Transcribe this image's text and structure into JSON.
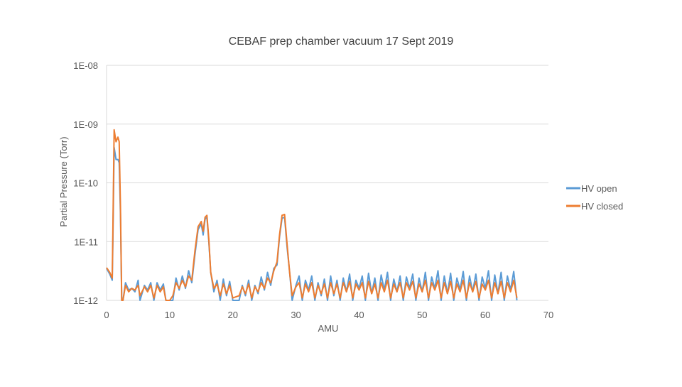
{
  "chart_data": {
    "type": "line",
    "title": "CEBAF prep chamber vacuum 17 Sept 2019",
    "xlabel": "AMU",
    "ylabel": "Partial Pressure (Torr)",
    "yscale": "log",
    "xlim": [
      0,
      70
    ],
    "ylim": [
      1e-12,
      1e-08
    ],
    "xticks": [
      0,
      10,
      20,
      30,
      40,
      50,
      60,
      70
    ],
    "xtick_labels": [
      "0",
      "10",
      "20",
      "30",
      "40",
      "50",
      "60",
      "70"
    ],
    "yticks": [
      1e-12,
      1e-11,
      1e-10,
      1e-09,
      1e-08
    ],
    "ytick_labels": [
      "1E-12",
      "1E-11",
      "1E-10",
      "1E-09",
      "1E-08"
    ],
    "grid": "horizontal",
    "legend_position": "right",
    "series": [
      {
        "name": "HV open",
        "color": "#5b9bd5",
        "points": [
          [
            0.0,
            3.5e-12
          ],
          [
            0.5,
            2.8e-12
          ],
          [
            0.9,
            2.2e-12
          ],
          [
            1.0,
            1e-11
          ],
          [
            1.2,
            4e-10
          ],
          [
            1.5,
            2.5e-10
          ],
          [
            1.8,
            2.5e-10
          ],
          [
            2.0,
            2.2e-10
          ],
          [
            2.2,
            3e-11
          ],
          [
            2.4,
            1e-12
          ],
          [
            2.6,
            1e-12
          ],
          [
            3.0,
            2e-12
          ],
          [
            3.5,
            1.5e-12
          ],
          [
            4.0,
            1.6e-12
          ],
          [
            4.5,
            1.4e-12
          ],
          [
            5.0,
            2.2e-12
          ],
          [
            5.3,
            1e-12
          ],
          [
            6.0,
            1.8e-12
          ],
          [
            6.5,
            1.5e-12
          ],
          [
            7.0,
            2e-12
          ],
          [
            7.5,
            1e-12
          ],
          [
            8.0,
            2e-12
          ],
          [
            8.5,
            1.5e-12
          ],
          [
            9.0,
            1.9e-12
          ],
          [
            9.4,
            1e-12
          ],
          [
            10.0,
            1e-12
          ],
          [
            10.5,
            1e-12
          ],
          [
            11.0,
            2.4e-12
          ],
          [
            11.5,
            1.5e-12
          ],
          [
            12.0,
            2.6e-12
          ],
          [
            12.5,
            1.6e-12
          ],
          [
            13.0,
            3.2e-12
          ],
          [
            13.5,
            2e-12
          ],
          [
            14.0,
            6e-12
          ],
          [
            14.5,
            1.6e-11
          ],
          [
            15.0,
            2e-11
          ],
          [
            15.3,
            1.3e-11
          ],
          [
            15.6,
            2.4e-11
          ],
          [
            15.9,
            2.6e-11
          ],
          [
            16.2,
            1e-11
          ],
          [
            16.5,
            3e-12
          ],
          [
            17.0,
            1.4e-12
          ],
          [
            17.5,
            2.2e-12
          ],
          [
            18.0,
            1e-12
          ],
          [
            18.5,
            2.3e-12
          ],
          [
            19.0,
            1.2e-12
          ],
          [
            19.5,
            2.1e-12
          ],
          [
            20.0,
            1e-12
          ],
          [
            21.0,
            1e-12
          ],
          [
            21.5,
            1.8e-12
          ],
          [
            22.0,
            1.2e-12
          ],
          [
            22.5,
            2.2e-12
          ],
          [
            23.0,
            1e-12
          ],
          [
            23.5,
            1.8e-12
          ],
          [
            24.0,
            1.3e-12
          ],
          [
            24.5,
            2.5e-12
          ],
          [
            25.0,
            1.5e-12
          ],
          [
            25.5,
            3e-12
          ],
          [
            26.0,
            1.8e-12
          ],
          [
            26.5,
            3.5e-12
          ],
          [
            27.0,
            4e-12
          ],
          [
            27.4,
            1.2e-11
          ],
          [
            27.8,
            2.5e-11
          ],
          [
            28.2,
            2.6e-11
          ],
          [
            28.6,
            8e-12
          ],
          [
            29.0,
            3e-12
          ],
          [
            29.4,
            1e-12
          ],
          [
            30.0,
            1.8e-12
          ],
          [
            30.5,
            2.6e-12
          ],
          [
            31.0,
            1e-12
          ],
          [
            31.5,
            2.2e-12
          ],
          [
            32.0,
            1.5e-12
          ],
          [
            32.5,
            2.6e-12
          ],
          [
            33.0,
            1e-12
          ],
          [
            33.5,
            2e-12
          ],
          [
            34.0,
            1.2e-12
          ],
          [
            34.5,
            2.3e-12
          ],
          [
            35.0,
            1e-12
          ],
          [
            35.5,
            2.6e-12
          ],
          [
            36.0,
            1.2e-12
          ],
          [
            36.5,
            2.2e-12
          ],
          [
            37.0,
            1e-12
          ],
          [
            37.5,
            2.4e-12
          ],
          [
            38.0,
            1.4e-12
          ],
          [
            38.5,
            2.8e-12
          ],
          [
            39.0,
            1e-12
          ],
          [
            39.5,
            2.2e-12
          ],
          [
            40.0,
            1.6e-12
          ],
          [
            40.5,
            2.6e-12
          ],
          [
            41.0,
            1e-12
          ],
          [
            41.5,
            2.9e-12
          ],
          [
            42.0,
            1.3e-12
          ],
          [
            42.5,
            2.4e-12
          ],
          [
            43.0,
            1e-12
          ],
          [
            43.5,
            2.7e-12
          ],
          [
            44.0,
            1.5e-12
          ],
          [
            44.5,
            3e-12
          ],
          [
            45.0,
            1e-12
          ],
          [
            45.5,
            2.3e-12
          ],
          [
            46.0,
            1.4e-12
          ],
          [
            46.5,
            2.6e-12
          ],
          [
            47.0,
            1e-12
          ],
          [
            47.5,
            2.5e-12
          ],
          [
            48.0,
            1.6e-12
          ],
          [
            48.5,
            2.8e-12
          ],
          [
            49.0,
            1e-12
          ],
          [
            49.5,
            2.4e-12
          ],
          [
            50.0,
            1.4e-12
          ],
          [
            50.5,
            3e-12
          ],
          [
            51.0,
            1e-12
          ],
          [
            51.5,
            2.5e-12
          ],
          [
            52.0,
            1.6e-12
          ],
          [
            52.5,
            3.2e-12
          ],
          [
            53.0,
            1e-12
          ],
          [
            53.5,
            2.6e-12
          ],
          [
            54.0,
            1.3e-12
          ],
          [
            54.5,
            2.9e-12
          ],
          [
            55.0,
            1e-12
          ],
          [
            55.5,
            2.4e-12
          ],
          [
            56.0,
            1.5e-12
          ],
          [
            56.5,
            3.1e-12
          ],
          [
            57.0,
            1e-12
          ],
          [
            57.5,
            2.6e-12
          ],
          [
            58.0,
            1.4e-12
          ],
          [
            58.5,
            2.8e-12
          ],
          [
            59.0,
            1e-12
          ],
          [
            59.5,
            2.5e-12
          ],
          [
            60.0,
            1.6e-12
          ],
          [
            60.5,
            3.2e-12
          ],
          [
            61.0,
            1e-12
          ],
          [
            61.5,
            2.7e-12
          ],
          [
            62.0,
            1.3e-12
          ],
          [
            62.5,
            3e-12
          ],
          [
            63.0,
            1e-12
          ],
          [
            63.5,
            2.6e-12
          ],
          [
            64.0,
            1.5e-12
          ],
          [
            64.5,
            3.1e-12
          ],
          [
            65.0,
            1e-12
          ]
        ]
      },
      {
        "name": "HV closed",
        "color": "#ed7d31",
        "points": [
          [
            0.0,
            3.6e-12
          ],
          [
            0.5,
            3e-12
          ],
          [
            0.9,
            2.4e-12
          ],
          [
            1.0,
            1.5e-11
          ],
          [
            1.2,
            8e-10
          ],
          [
            1.5,
            5e-10
          ],
          [
            1.8,
            6e-10
          ],
          [
            2.0,
            5e-10
          ],
          [
            2.2,
            4e-11
          ],
          [
            2.4,
            1e-12
          ],
          [
            2.6,
            1e-12
          ],
          [
            3.0,
            1.8e-12
          ],
          [
            3.5,
            1.4e-12
          ],
          [
            4.0,
            1.6e-12
          ],
          [
            4.5,
            1.5e-12
          ],
          [
            5.0,
            1.8e-12
          ],
          [
            5.3,
            1.2e-12
          ],
          [
            6.0,
            1.7e-12
          ],
          [
            6.5,
            1.4e-12
          ],
          [
            7.0,
            1.8e-12
          ],
          [
            7.5,
            1.1e-12
          ],
          [
            8.0,
            1.8e-12
          ],
          [
            8.5,
            1.4e-12
          ],
          [
            9.0,
            1.7e-12
          ],
          [
            9.4,
            1e-12
          ],
          [
            10.0,
            1e-12
          ],
          [
            10.5,
            1.2e-12
          ],
          [
            11.0,
            2e-12
          ],
          [
            11.5,
            1.6e-12
          ],
          [
            12.0,
            2.2e-12
          ],
          [
            12.5,
            1.7e-12
          ],
          [
            13.0,
            2.6e-12
          ],
          [
            13.5,
            2.2e-12
          ],
          [
            14.0,
            7e-12
          ],
          [
            14.5,
            1.8e-11
          ],
          [
            15.0,
            2.2e-11
          ],
          [
            15.3,
            1.5e-11
          ],
          [
            15.6,
            2.6e-11
          ],
          [
            15.9,
            2.8e-11
          ],
          [
            16.2,
            1.1e-11
          ],
          [
            16.5,
            3e-12
          ],
          [
            17.0,
            1.6e-12
          ],
          [
            17.5,
            1.9e-12
          ],
          [
            18.0,
            1.2e-12
          ],
          [
            18.5,
            1.9e-12
          ],
          [
            19.0,
            1.3e-12
          ],
          [
            19.5,
            1.8e-12
          ],
          [
            20.0,
            1.1e-12
          ],
          [
            21.0,
            1.2e-12
          ],
          [
            21.5,
            1.7e-12
          ],
          [
            22.0,
            1.3e-12
          ],
          [
            22.5,
            1.9e-12
          ],
          [
            23.0,
            1.1e-12
          ],
          [
            23.5,
            1.7e-12
          ],
          [
            24.0,
            1.4e-12
          ],
          [
            24.5,
            2e-12
          ],
          [
            25.0,
            1.6e-12
          ],
          [
            25.5,
            2.4e-12
          ],
          [
            26.0,
            2e-12
          ],
          [
            26.5,
            3.2e-12
          ],
          [
            27.0,
            4.5e-12
          ],
          [
            27.4,
            1.3e-11
          ],
          [
            27.8,
            2.8e-11
          ],
          [
            28.2,
            2.9e-11
          ],
          [
            28.6,
            9e-12
          ],
          [
            29.0,
            3e-12
          ],
          [
            29.4,
            1.2e-12
          ],
          [
            30.0,
            1.7e-12
          ],
          [
            30.5,
            2e-12
          ],
          [
            31.0,
            1.1e-12
          ],
          [
            31.5,
            1.9e-12
          ],
          [
            32.0,
            1.4e-12
          ],
          [
            32.5,
            2e-12
          ],
          [
            33.0,
            1.1e-12
          ],
          [
            33.5,
            1.8e-12
          ],
          [
            34.0,
            1.3e-12
          ],
          [
            34.5,
            1.9e-12
          ],
          [
            35.0,
            1.1e-12
          ],
          [
            35.5,
            2e-12
          ],
          [
            36.0,
            1.3e-12
          ],
          [
            36.5,
            1.9e-12
          ],
          [
            37.0,
            1.1e-12
          ],
          [
            37.5,
            2e-12
          ],
          [
            38.0,
            1.4e-12
          ],
          [
            38.5,
            2.1e-12
          ],
          [
            39.0,
            1.1e-12
          ],
          [
            39.5,
            1.9e-12
          ],
          [
            40.0,
            1.5e-12
          ],
          [
            40.5,
            2e-12
          ],
          [
            41.0,
            1.1e-12
          ],
          [
            41.5,
            2.1e-12
          ],
          [
            42.0,
            1.3e-12
          ],
          [
            42.5,
            1.9e-12
          ],
          [
            43.0,
            1.1e-12
          ],
          [
            43.5,
            2e-12
          ],
          [
            44.0,
            1.4e-12
          ],
          [
            44.5,
            2.2e-12
          ],
          [
            45.0,
            1.1e-12
          ],
          [
            45.5,
            1.9e-12
          ],
          [
            46.0,
            1.4e-12
          ],
          [
            46.5,
            2e-12
          ],
          [
            47.0,
            1.1e-12
          ],
          [
            47.5,
            2e-12
          ],
          [
            48.0,
            1.5e-12
          ],
          [
            48.5,
            2.1e-12
          ],
          [
            49.0,
            1.1e-12
          ],
          [
            49.5,
            1.9e-12
          ],
          [
            50.0,
            1.4e-12
          ],
          [
            50.5,
            2.2e-12
          ],
          [
            51.0,
            1.1e-12
          ],
          [
            51.5,
            2e-12
          ],
          [
            52.0,
            1.5e-12
          ],
          [
            52.5,
            2.2e-12
          ],
          [
            53.0,
            1.1e-12
          ],
          [
            53.5,
            2e-12
          ],
          [
            54.0,
            1.3e-12
          ],
          [
            54.5,
            2.1e-12
          ],
          [
            55.0,
            1.1e-12
          ],
          [
            55.5,
            1.9e-12
          ],
          [
            56.0,
            1.4e-12
          ],
          [
            56.5,
            2.2e-12
          ],
          [
            57.0,
            1.1e-12
          ],
          [
            57.5,
            2e-12
          ],
          [
            58.0,
            1.4e-12
          ],
          [
            58.5,
            2.1e-12
          ],
          [
            59.0,
            1.1e-12
          ],
          [
            59.5,
            1.9e-12
          ],
          [
            60.0,
            1.5e-12
          ],
          [
            60.5,
            2.2e-12
          ],
          [
            61.0,
            1.1e-12
          ],
          [
            61.5,
            2e-12
          ],
          [
            62.0,
            1.3e-12
          ],
          [
            62.5,
            2.1e-12
          ],
          [
            63.0,
            1.1e-12
          ],
          [
            63.5,
            2e-12
          ],
          [
            64.0,
            1.4e-12
          ],
          [
            64.5,
            2.2e-12
          ],
          [
            65.0,
            1.1e-12
          ]
        ]
      }
    ]
  }
}
